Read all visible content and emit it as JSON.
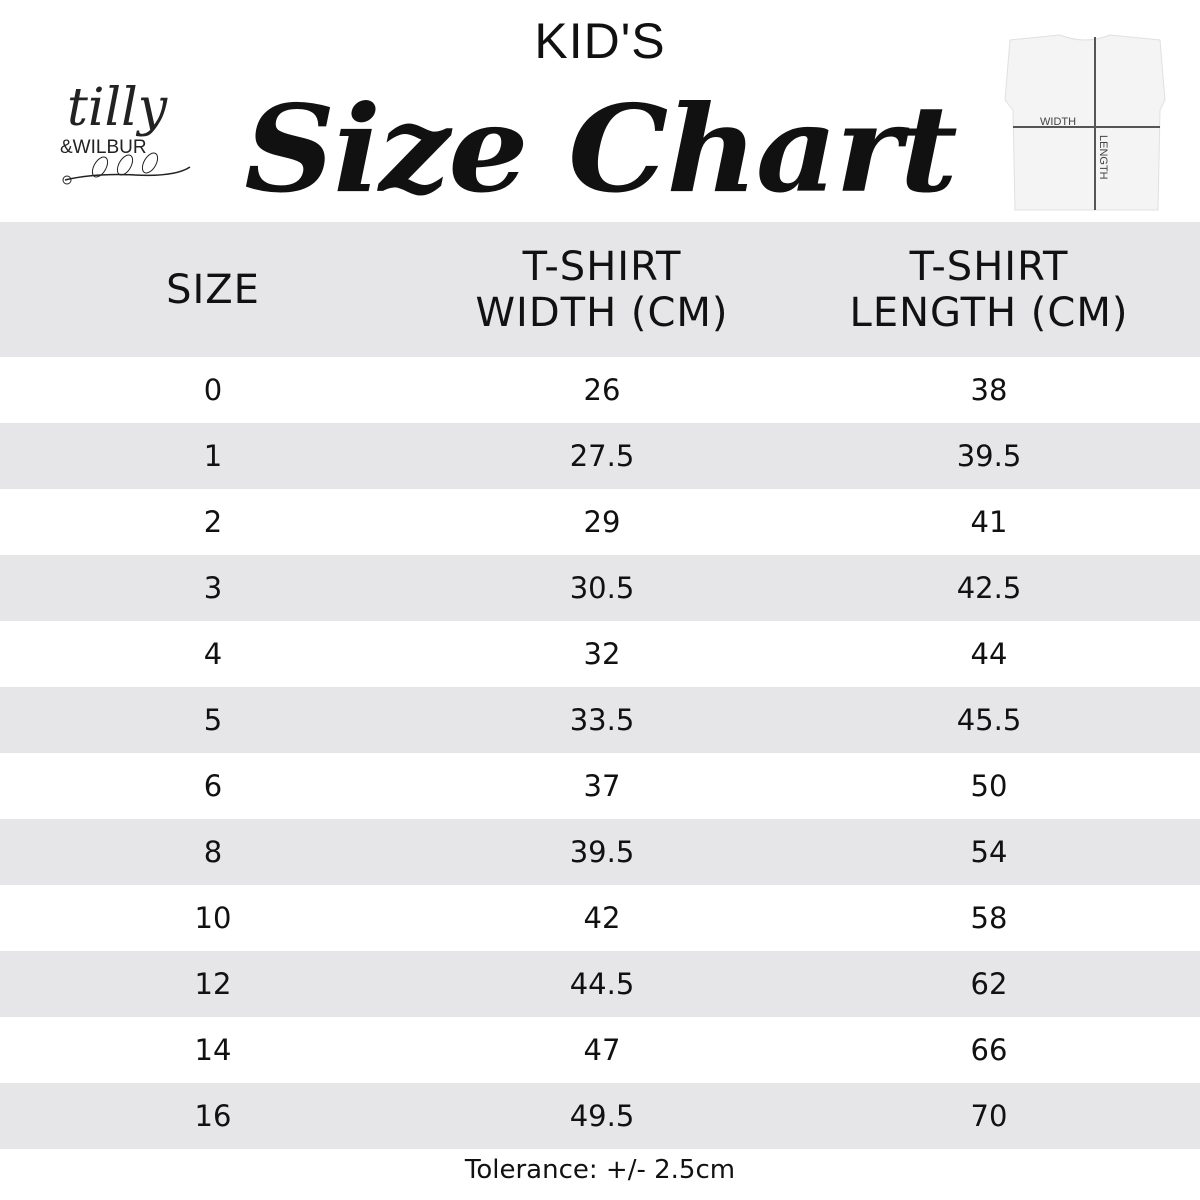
{
  "header": {
    "subtitle": "KID'S",
    "title": "Size Chart",
    "logo_text": "tilly &WILBUR",
    "diagram_labels": {
      "width": "WIDTH",
      "length": "LENGTH"
    }
  },
  "table": {
    "columns": [
      "SIZE",
      "T-SHIRT WIDTH (CM)",
      "T-SHIRT LENGTH (CM)"
    ],
    "column_lines": [
      [
        "SIZE"
      ],
      [
        "T-SHIRT",
        "WIDTH (CM)"
      ],
      [
        "T-SHIRT",
        "LENGTH (CM)"
      ]
    ],
    "rows": [
      [
        "0",
        "26",
        "38"
      ],
      [
        "1",
        "27.5",
        "39.5"
      ],
      [
        "2",
        "29",
        "41"
      ],
      [
        "3",
        "30.5",
        "42.5"
      ],
      [
        "4",
        "32",
        "44"
      ],
      [
        "5",
        "33.5",
        "45.5"
      ],
      [
        "6",
        "37",
        "50"
      ],
      [
        "8",
        "39.5",
        "54"
      ],
      [
        "10",
        "42",
        "58"
      ],
      [
        "12",
        "44.5",
        "62"
      ],
      [
        "14",
        "47",
        "66"
      ],
      [
        "16",
        "49.5",
        "70"
      ]
    ],
    "stripe_color": "#e6e6e8"
  },
  "footer": {
    "tolerance": "Tolerance: +/- 2.5cm"
  }
}
